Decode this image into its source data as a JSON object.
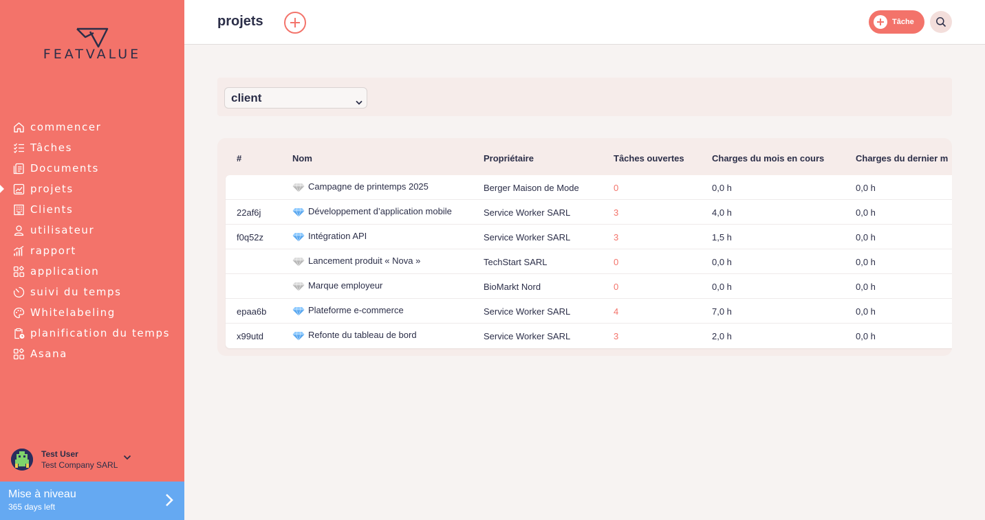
{
  "brand": {
    "logo_text": "FEATVALUE"
  },
  "sidebar": {
    "items": [
      {
        "label": "commencer",
        "icon": "home-icon"
      },
      {
        "label": "Tâches",
        "icon": "checklist-icon"
      },
      {
        "label": "Documents",
        "icon": "document-icon"
      },
      {
        "label": "projets",
        "icon": "chart-icon",
        "active": true
      },
      {
        "label": "Clients",
        "icon": "building-icon"
      },
      {
        "label": "utilisateur",
        "icon": "user-icon"
      },
      {
        "label": "rapport",
        "icon": "bar-chart-icon"
      },
      {
        "label": "application",
        "icon": "apps-icon"
      },
      {
        "label": "suivi du temps",
        "icon": "timer-icon"
      },
      {
        "label": "Whitelabeling",
        "icon": "palette-icon"
      },
      {
        "label": "planification du temps",
        "icon": "clipboard-clock-icon"
      },
      {
        "label": "Asana",
        "icon": "apps-icon"
      }
    ],
    "user": {
      "name": "Test User",
      "company": "Test Company SARL"
    },
    "upgrade": {
      "title": "Mise à niveau",
      "subtitle": "365 days left"
    }
  },
  "header": {
    "title": "projets",
    "task_button_label": "Tâche"
  },
  "filter": {
    "selected": "client"
  },
  "table": {
    "columns": [
      "#",
      "Nom",
      "Propriétaire",
      "Tâches ouvertes",
      "Charges du mois en cours",
      "Charges du dernier m"
    ],
    "rows": [
      {
        "id": "",
        "gem": "gray",
        "name": "Campagne de printemps 2025",
        "owner": "Berger Maison de Mode",
        "open": "0",
        "current": "0,0 h",
        "last": "0,0 h"
      },
      {
        "id": "22af6j",
        "gem": "blue",
        "name": "Développement d’application mobile",
        "owner": "Service Worker SARL",
        "open": "3",
        "current": "4,0 h",
        "last": "0,0 h"
      },
      {
        "id": "f0q52z",
        "gem": "blue",
        "name": "Intégration API",
        "owner": "Service Worker SARL",
        "open": "3",
        "current": "1,5 h",
        "last": "0,0 h"
      },
      {
        "id": "",
        "gem": "gray",
        "name": "Lancement produit « Nova »",
        "owner": "TechStart SARL",
        "open": "0",
        "current": "0,0 h",
        "last": "0,0 h"
      },
      {
        "id": "",
        "gem": "gray",
        "name": "Marque employeur",
        "owner": "BioMarkt Nord",
        "open": "0",
        "current": "0,0 h",
        "last": "0,0 h"
      },
      {
        "id": "epaa6b",
        "gem": "blue",
        "name": "Plateforme e-commerce",
        "owner": "Service Worker SARL",
        "open": "4",
        "current": "7,0 h",
        "last": "0,0 h"
      },
      {
        "id": "x99utd",
        "gem": "blue",
        "name": "Refonte du tableau de bord",
        "owner": "Service Worker SARL",
        "open": "3",
        "current": "2,0 h",
        "last": "0,0 h"
      }
    ]
  },
  "colors": {
    "accent": "#f3736a",
    "upgrade": "#65a9f2",
    "text": "#2b2e48"
  }
}
